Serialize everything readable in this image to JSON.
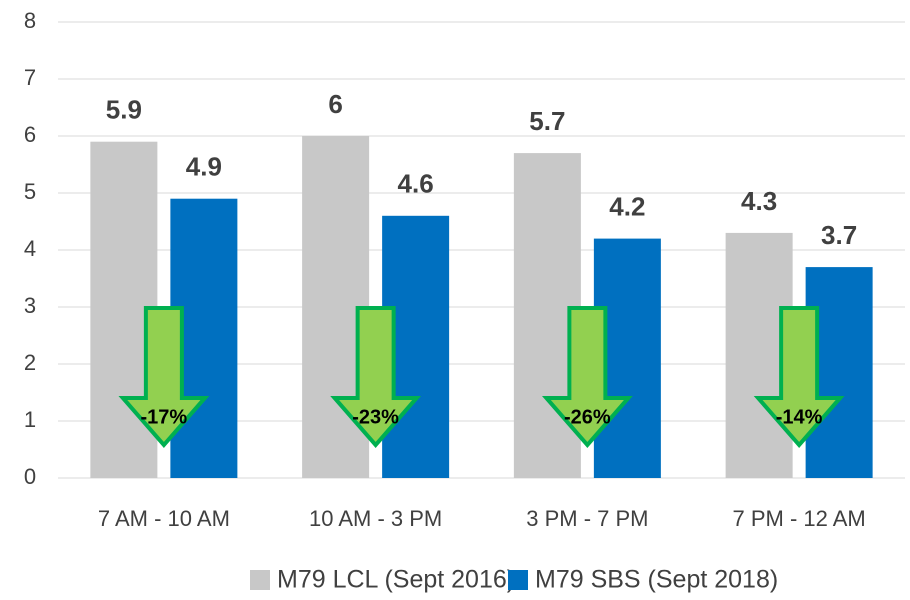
{
  "chart_data": {
    "type": "bar",
    "categories": [
      "7 AM - 10 AM",
      "10 AM - 3 PM",
      "3 PM - 7 PM",
      "7 PM - 12 AM"
    ],
    "series": [
      {
        "name": "M79 LCL (Sept 2016)",
        "color": "#c8c8c8",
        "values": [
          5.9,
          6,
          5.7,
          4.3
        ]
      },
      {
        "name": "M79 SBS (Sept 2018)",
        "color": "#0070c0",
        "values": [
          4.9,
          4.6,
          4.2,
          3.7
        ]
      }
    ],
    "annotations": [
      "-17%",
      "-23%",
      "-26%",
      "-14%"
    ],
    "ylim": [
      0,
      8
    ],
    "yticks": [
      0,
      1,
      2,
      3,
      4,
      5,
      6,
      7,
      8
    ],
    "grid": true,
    "legend": "bottom"
  }
}
